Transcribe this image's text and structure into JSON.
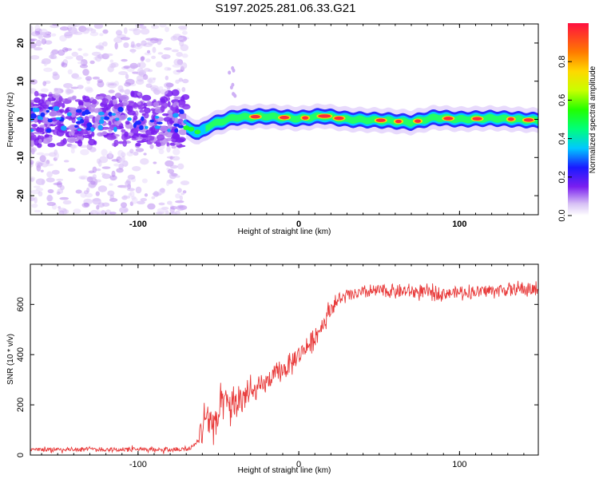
{
  "title": "S197.2025.281.06.33.G21",
  "chart_data": [
    {
      "type": "heatmap",
      "name": "spectrogram",
      "xlabel": "Height of straight line (km)",
      "ylabel": "Frequency (Hz)",
      "xlim": [
        -167,
        149
      ],
      "ylim": [
        -25,
        25
      ],
      "xticks": [
        -100,
        0,
        100
      ],
      "yticks": [
        -20,
        -10,
        0,
        10,
        20
      ],
      "ridge": {
        "description_points": [
          [
            -70,
            -2.2
          ],
          [
            -62,
            -3.5
          ],
          [
            -55,
            -1.5
          ],
          [
            -40,
            0.5
          ],
          [
            -20,
            0.8
          ],
          [
            0,
            0.2
          ],
          [
            15,
            0.9
          ],
          [
            30,
            0.0
          ],
          [
            55,
            -0.3
          ],
          [
            70,
            -0.8
          ],
          [
            85,
            0.5
          ],
          [
            100,
            0.0
          ],
          [
            120,
            0.3
          ],
          [
            149,
            -0.3
          ]
        ],
        "high_amplitude_segments_x": [
          [
            -30,
            -24
          ],
          [
            -12,
            -6
          ],
          [
            2,
            6
          ],
          [
            12,
            20
          ],
          [
            22,
            28
          ],
          [
            48,
            54
          ],
          [
            60,
            64
          ],
          [
            72,
            76
          ],
          [
            90,
            96
          ],
          [
            108,
            114
          ],
          [
            130,
            134
          ],
          [
            140,
            146
          ]
        ]
      },
      "noise_region_x": [
        -167,
        -70
      ],
      "colorbar": {
        "label": "Normalized spectral amplitude",
        "ticks": [
          "0.0",
          "0.2",
          "0.4",
          "0.6",
          "0.8"
        ],
        "range": [
          0,
          1
        ]
      }
    },
    {
      "type": "line",
      "name": "snr",
      "xlabel": "Height of straight line (km)",
      "ylabel": "SNR (10 * v/v)",
      "xlim": [
        -167,
        149
      ],
      "ylim": [
        0,
        760
      ],
      "xticks": [
        -100,
        0,
        100
      ],
      "yticks": [
        0,
        200,
        400,
        600
      ],
      "color": "#e83a3a",
      "series": [
        {
          "name": "SNR",
          "x": [
            -167,
            -150,
            -130,
            -110,
            -90,
            -75,
            -68,
            -62,
            -58,
            -52,
            -47,
            -42,
            -35,
            -28,
            -20,
            -12,
            -5,
            0,
            8,
            15,
            20,
            28,
            35,
            50,
            70,
            90,
            110,
            130,
            149
          ],
          "y": [
            22,
            22,
            23,
            22,
            22,
            23,
            25,
            60,
            160,
            120,
            210,
            190,
            230,
            250,
            290,
            330,
            360,
            400,
            450,
            520,
            590,
            630,
            640,
            655,
            650,
            645,
            650,
            660,
            660
          ]
        }
      ]
    }
  ]
}
